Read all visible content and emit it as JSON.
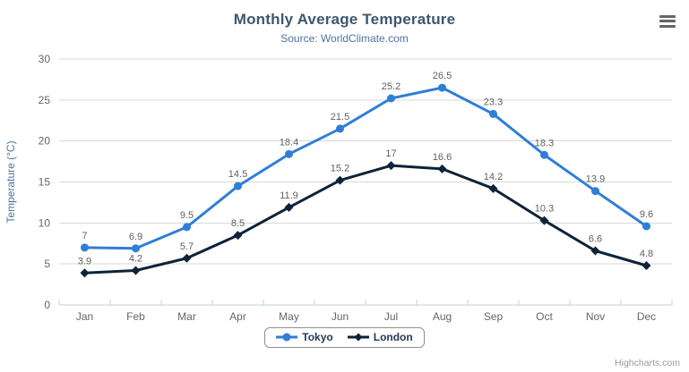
{
  "header": {
    "title": "Monthly Average Temperature",
    "subtitle": "Source: WorldClimate.com"
  },
  "credits": "Highcharts.com",
  "menu_icon": "hamburger-menu-icon",
  "chart_data": {
    "type": "line",
    "categories": [
      "Jan",
      "Feb",
      "Mar",
      "Apr",
      "May",
      "Jun",
      "Jul",
      "Aug",
      "Sep",
      "Oct",
      "Nov",
      "Dec"
    ],
    "series": [
      {
        "name": "Tokyo",
        "marker": "circle",
        "color": "#2f7ed8",
        "values": [
          7.0,
          6.9,
          9.5,
          14.5,
          18.4,
          21.5,
          25.2,
          26.5,
          23.3,
          18.3,
          13.9,
          9.6
        ]
      },
      {
        "name": "London",
        "marker": "diamond",
        "color": "#0d233a",
        "values": [
          3.9,
          4.2,
          5.7,
          8.5,
          11.9,
          15.2,
          17.0,
          16.6,
          14.2,
          10.3,
          6.6,
          4.8
        ]
      }
    ],
    "title": "Monthly Average Temperature",
    "subtitle": "Source: WorldClimate.com",
    "xlabel": "",
    "ylabel": "Temperature (°C)",
    "ylim": [
      0,
      30
    ],
    "ytick_step": 5,
    "yticks": [
      0,
      5,
      10,
      15,
      20,
      25,
      30
    ],
    "grid": true,
    "data_labels": true,
    "legend_position": "bottom-center"
  },
  "style": {
    "title_color": "#3e576f",
    "subtitle_color": "#4d759e",
    "axis_label_color": "#666666",
    "axis_title_color": "#4d759e",
    "grid_color": "#d8d8d8",
    "axis_line_color": "#c0d0e0",
    "data_label_color": "#606060",
    "legend_text_color": "#253a58",
    "legend_border_color": "#909090",
    "menu_icon_color": "#666666",
    "credits_color": "#999999"
  }
}
